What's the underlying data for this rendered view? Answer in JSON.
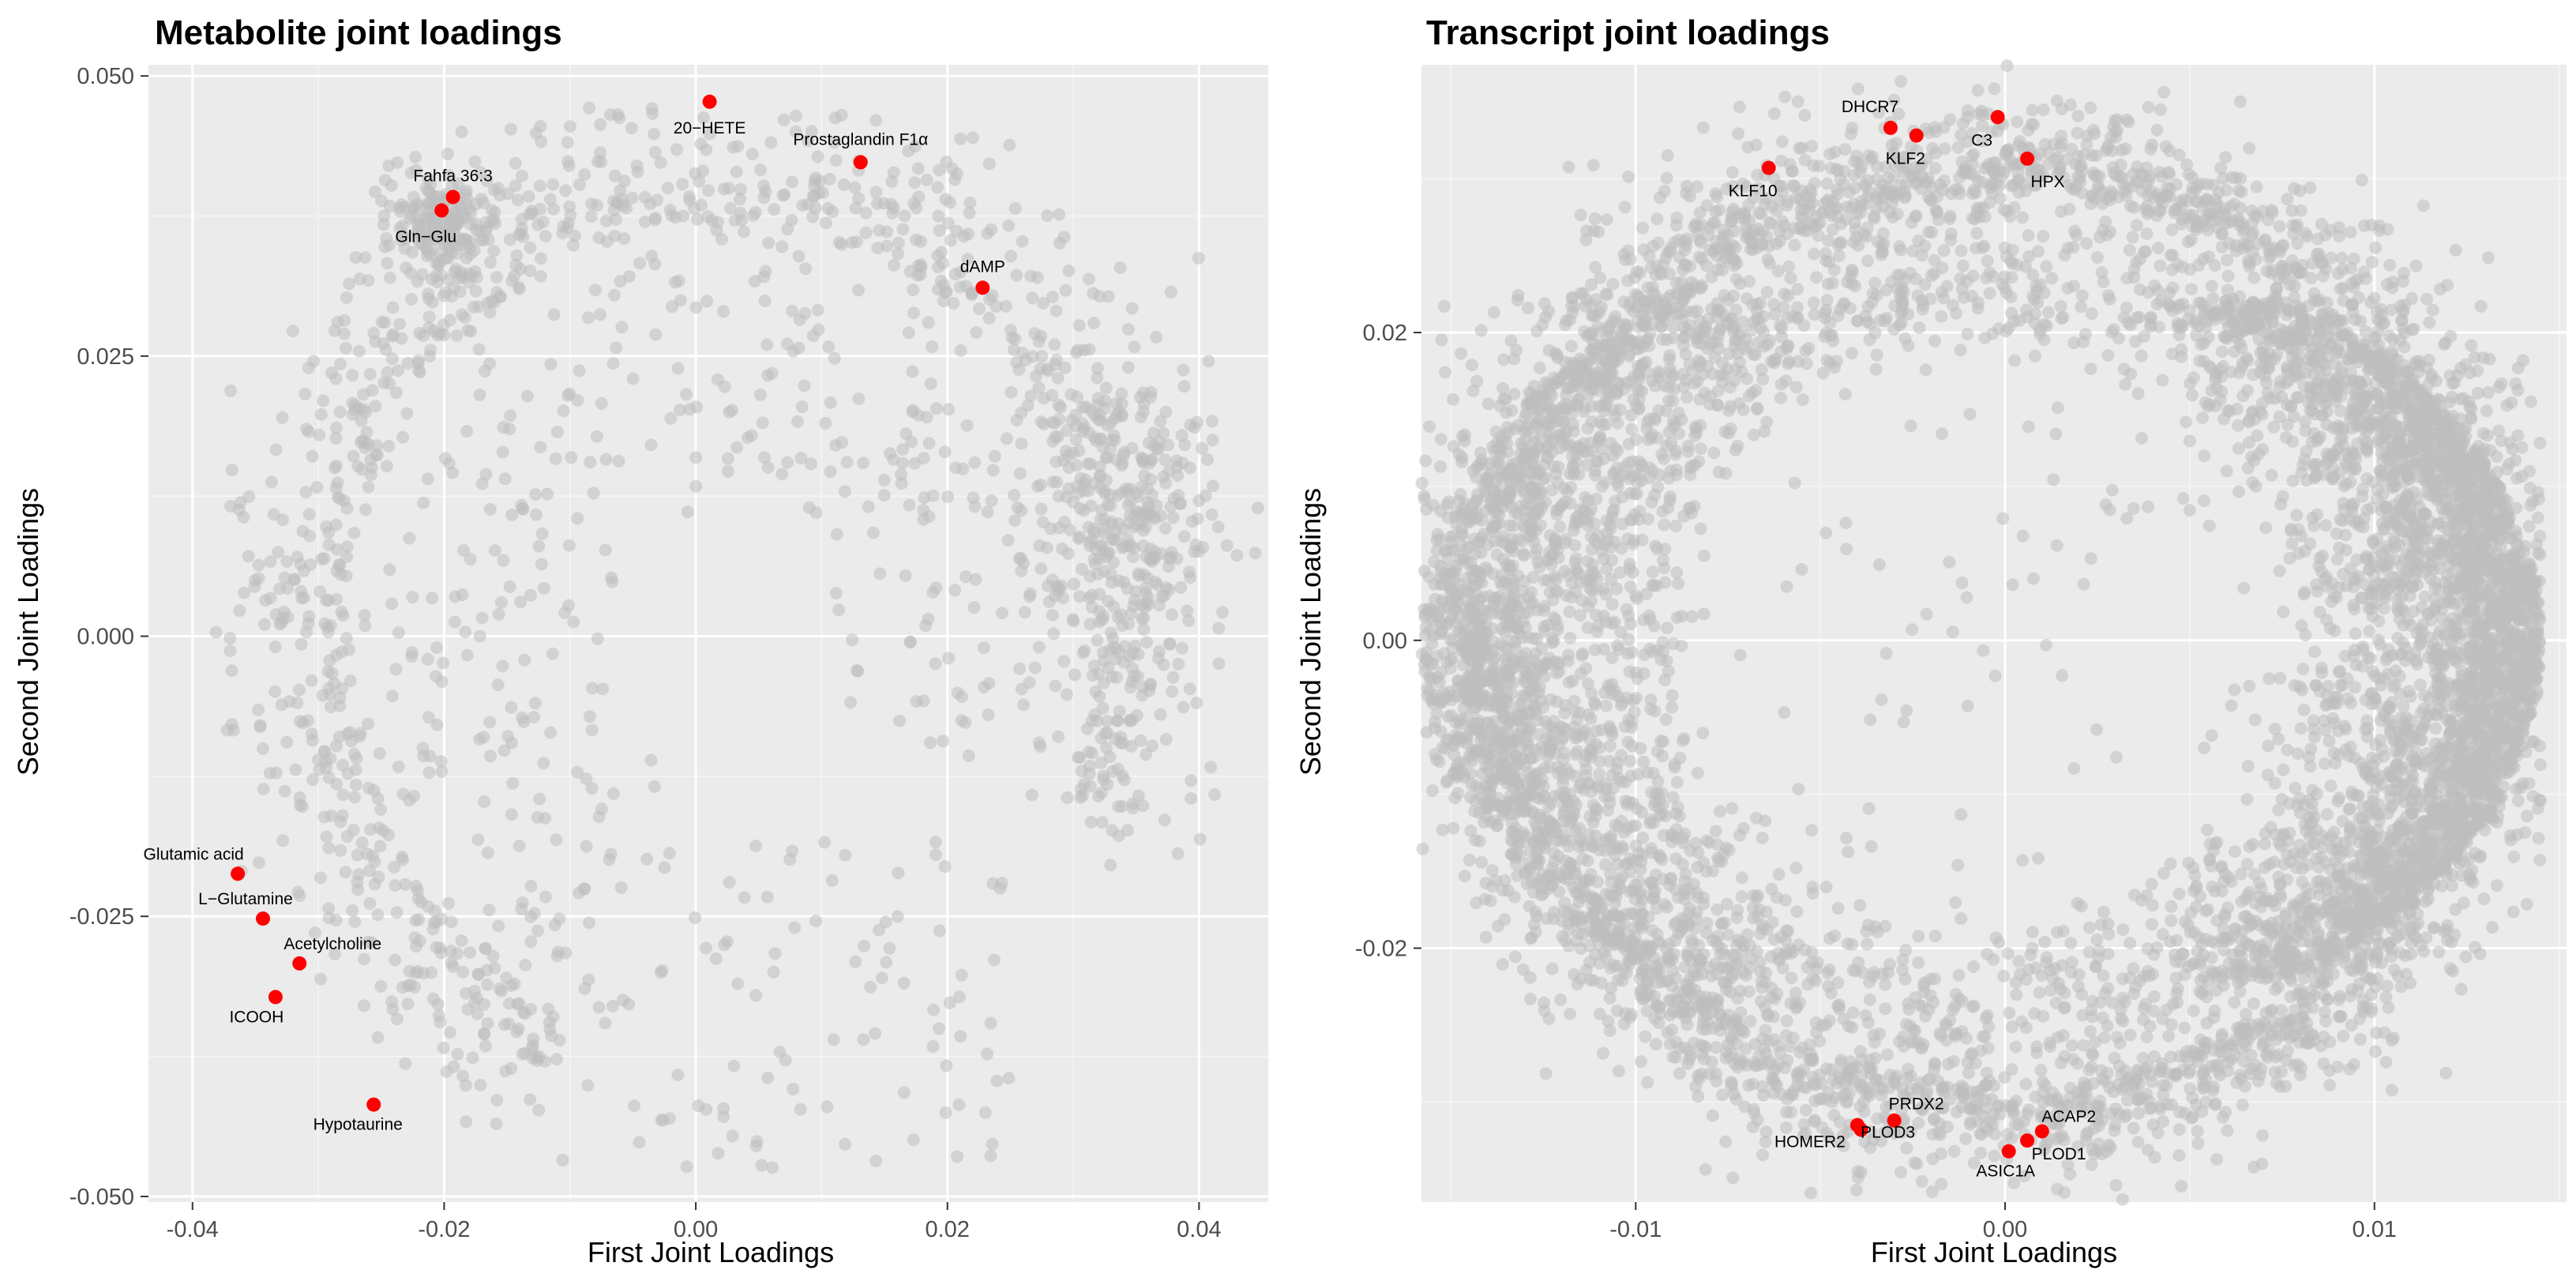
{
  "colors": {
    "panel_bg": "#ebebeb",
    "grid_major": "#ffffff",
    "grid_minor": "#f5f5f5",
    "background_points": "#bebebe",
    "highlight_points": "#ff0000",
    "tick_text": "#4d4d4d"
  },
  "chart_data": [
    {
      "type": "scatter",
      "title": "Metabolite joint loadings",
      "xlabel": "First Joint Loadings",
      "ylabel": "Second Joint Loadings",
      "xlim": [
        -0.0435,
        0.0455
      ],
      "ylim": [
        -0.0505,
        0.051
      ],
      "x_ticks": [
        -0.04,
        -0.02,
        0.0,
        0.02,
        0.04
      ],
      "x_tick_labels": [
        "-0.04",
        "-0.02",
        "0.00",
        "0.02",
        "0.04"
      ],
      "y_ticks": [
        -0.05,
        -0.025,
        0.0,
        0.025,
        0.05
      ],
      "y_tick_labels": [
        "-0.050",
        "-0.025",
        "0.000",
        "0.025",
        "0.050"
      ],
      "grid": true,
      "legend": "none",
      "background_series": {
        "name": "",
        "note_points": "approx. 1400 grey points distributed in an open arc (heavier near x≈-0.02..0.04)"
      },
      "highlighted": [
        {
          "label": "20−HETE",
          "x": 0.0011,
          "y": 0.0477
        },
        {
          "label": "Prostaglandin F1α",
          "x": 0.0131,
          "y": 0.0423
        },
        {
          "label": "Fahfa 36:3",
          "x": -0.0193,
          "y": 0.0392
        },
        {
          "label": "Gln−Glu",
          "x": -0.0202,
          "y": 0.038
        },
        {
          "label": "dAMP",
          "x": 0.0228,
          "y": 0.0311
        },
        {
          "label": "Glutamic acid",
          "x": -0.0364,
          "y": -0.0212
        },
        {
          "label": "L−Glutamine",
          "x": -0.0344,
          "y": -0.0252
        },
        {
          "label": "Acetylcholine",
          "x": -0.0315,
          "y": -0.0292
        },
        {
          "label": "ICOOH",
          "x": -0.0334,
          "y": -0.0322
        },
        {
          "label": "Hypotaurine",
          "x": -0.0256,
          "y": -0.0418
        }
      ]
    },
    {
      "type": "scatter",
      "title": "Transcript joint loadings",
      "xlabel": "First Joint Loadings",
      "ylabel": "Second Joint Loadings",
      "xlim": [
        -0.0158,
        0.0152
      ],
      "ylim": [
        -0.0365,
        0.0374
      ],
      "x_ticks": [
        -0.01,
        0.0,
        0.01
      ],
      "x_tick_labels": [
        "-0.01",
        "0.00",
        "0.01"
      ],
      "y_ticks": [
        -0.02,
        0.0,
        0.02
      ],
      "y_tick_labels": [
        "-0.02",
        "0.00",
        "0.02"
      ],
      "grid": true,
      "legend": "none",
      "background_series": {
        "name": "",
        "note_points": "several thousand grey points forming a ring, densest along the right edge"
      },
      "highlighted": [
        {
          "label": "DHCR7",
          "x": -0.0031,
          "y": 0.0333
        },
        {
          "label": "KLF2",
          "x": -0.0024,
          "y": 0.0328
        },
        {
          "label": "C3",
          "x": -0.0002,
          "y": 0.034
        },
        {
          "label": "HPX",
          "x": 0.0006,
          "y": 0.0313
        },
        {
          "label": "KLF10",
          "x": -0.0064,
          "y": 0.0307
        },
        {
          "label": "PRDX2",
          "x": -0.003,
          "y": -0.0312
        },
        {
          "label": "HOMER2",
          "x": -0.004,
          "y": -0.0315
        },
        {
          "label": "PLOD3",
          "x": -0.0039,
          "y": -0.0318
        },
        {
          "label": "ACAP2",
          "x": 0.001,
          "y": -0.0319
        },
        {
          "label": "PLOD1",
          "x": 0.0006,
          "y": -0.0325
        },
        {
          "label": "ASIC1A",
          "x": 0.0001,
          "y": -0.0332
        }
      ]
    }
  ]
}
